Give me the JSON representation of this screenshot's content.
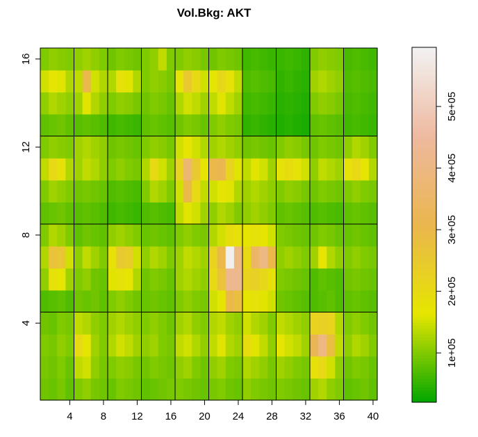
{
  "chart_data": {
    "type": "heatmap",
    "title": "Vol.Bkg:  AKT",
    "xlim": [
      0.5,
      40.5
    ],
    "ylim": [
      0.5,
      16.5
    ],
    "xticks": [
      4,
      8,
      12,
      16,
      20,
      24,
      28,
      32,
      36,
      40
    ],
    "yticks": [
      4,
      8,
      12,
      16
    ],
    "zlim": [
      20000,
      596000
    ],
    "zticks": [
      {
        "value": 100000,
        "label": "1e+05"
      },
      {
        "value": 200000,
        "label": "2e+05"
      },
      {
        "value": 300000,
        "label": "3e+05"
      },
      {
        "value": 400000,
        "label": "4e+05"
      },
      {
        "value": 500000,
        "label": "5e+05"
      }
    ],
    "colors": [
      "#00A600",
      "#E6E600",
      "#EAB64E",
      "#EEB99F",
      "#F2F2F2"
    ],
    "z": [
      [
        90000,
        85000,
        95000,
        80000,
        100000,
        110000,
        95000,
        90000,
        85000,
        100000,
        95000,
        90000,
        80000,
        85000,
        90000,
        95000,
        100000,
        95000,
        90000,
        85000,
        95000,
        100000,
        90000,
        85000,
        110000,
        100000,
        95000,
        90000,
        100000,
        95000,
        90000,
        85000,
        120000,
        130000,
        110000,
        100000,
        80000,
        85000,
        90000,
        80000
      ],
      [
        95000,
        90000,
        100000,
        85000,
        140000,
        150000,
        110000,
        95000,
        100000,
        110000,
        105000,
        95000,
        90000,
        100000,
        95000,
        90000,
        110000,
        120000,
        100000,
        90000,
        110000,
        120000,
        100000,
        95000,
        130000,
        120000,
        110000,
        95000,
        120000,
        110000,
        100000,
        95000,
        180000,
        200000,
        150000,
        110000,
        90000,
        100000,
        95000,
        85000
      ],
      [
        100000,
        95000,
        110000,
        100000,
        200000,
        170000,
        120000,
        100000,
        130000,
        150000,
        140000,
        120000,
        110000,
        120000,
        100000,
        95000,
        140000,
        150000,
        130000,
        110000,
        140000,
        160000,
        130000,
        120000,
        190000,
        160000,
        140000,
        110000,
        170000,
        150000,
        140000,
        120000,
        320000,
        400000,
        280000,
        140000,
        110000,
        130000,
        120000,
        100000
      ],
      [
        90000,
        85000,
        100000,
        95000,
        140000,
        130000,
        110000,
        100000,
        120000,
        130000,
        120000,
        110000,
        100000,
        110000,
        100000,
        90000,
        120000,
        130000,
        110000,
        100000,
        130000,
        140000,
        120000,
        110000,
        150000,
        130000,
        120000,
        100000,
        140000,
        130000,
        120000,
        110000,
        220000,
        230000,
        220000,
        130000,
        100000,
        110000,
        100000,
        90000
      ],
      [
        70000,
        75000,
        80000,
        70000,
        90000,
        85000,
        90000,
        80000,
        100000,
        110000,
        100000,
        90000,
        85000,
        90000,
        85000,
        80000,
        100000,
        110000,
        100000,
        95000,
        150000,
        170000,
        300000,
        280000,
        170000,
        180000,
        160000,
        150000,
        90000,
        85000,
        80000,
        75000,
        70000,
        75000,
        80000,
        70000,
        80000,
        85000,
        80000,
        75000
      ],
      [
        110000,
        180000,
        170000,
        120000,
        100000,
        110000,
        90000,
        85000,
        160000,
        180000,
        170000,
        130000,
        90000,
        100000,
        95000,
        85000,
        120000,
        130000,
        120000,
        110000,
        200000,
        270000,
        420000,
        420000,
        220000,
        230000,
        210000,
        180000,
        100000,
        95000,
        90000,
        85000,
        70000,
        80000,
        75000,
        70000,
        90000,
        95000,
        90000,
        85000
      ],
      [
        130000,
        270000,
        260000,
        150000,
        110000,
        140000,
        120000,
        100000,
        180000,
        250000,
        240000,
        150000,
        110000,
        130000,
        120000,
        100000,
        120000,
        140000,
        130000,
        120000,
        220000,
        300000,
        590000,
        400000,
        200000,
        350000,
        400000,
        300000,
        110000,
        120000,
        110000,
        100000,
        120000,
        170000,
        130000,
        110000,
        100000,
        110000,
        100000,
        95000
      ],
      [
        100000,
        130000,
        120000,
        100000,
        80000,
        90000,
        85000,
        80000,
        110000,
        120000,
        110000,
        100000,
        85000,
        90000,
        85000,
        80000,
        100000,
        110000,
        100000,
        95000,
        130000,
        150000,
        190000,
        180000,
        170000,
        180000,
        170000,
        150000,
        100000,
        95000,
        90000,
        85000,
        90000,
        100000,
        95000,
        85000,
        85000,
        90000,
        85000,
        80000
      ],
      [
        80000,
        85000,
        90000,
        80000,
        75000,
        80000,
        75000,
        70000,
        60000,
        65000,
        60000,
        55000,
        70000,
        75000,
        70000,
        65000,
        140000,
        160000,
        150000,
        120000,
        110000,
        130000,
        120000,
        100000,
        110000,
        120000,
        110000,
        100000,
        80000,
        85000,
        80000,
        75000,
        70000,
        75000,
        70000,
        65000,
        80000,
        85000,
        80000,
        75000
      ],
      [
        100000,
        120000,
        110000,
        100000,
        90000,
        95000,
        90000,
        85000,
        70000,
        75000,
        70000,
        65000,
        100000,
        130000,
        120000,
        100000,
        150000,
        300000,
        200000,
        140000,
        150000,
        170000,
        160000,
        130000,
        120000,
        130000,
        120000,
        110000,
        100000,
        110000,
        105000,
        95000,
        90000,
        100000,
        95000,
        90000,
        100000,
        110000,
        100000,
        95000
      ],
      [
        140000,
        200000,
        180000,
        130000,
        120000,
        140000,
        130000,
        110000,
        100000,
        110000,
        100000,
        95000,
        130000,
        200000,
        150000,
        120000,
        220000,
        370000,
        250000,
        170000,
        300000,
        310000,
        220000,
        160000,
        140000,
        160000,
        150000,
        120000,
        180000,
        190000,
        180000,
        150000,
        110000,
        140000,
        130000,
        120000,
        180000,
        200000,
        170000,
        130000
      ],
      [
        100000,
        110000,
        105000,
        100000,
        120000,
        130000,
        120000,
        110000,
        90000,
        95000,
        90000,
        85000,
        100000,
        110000,
        105000,
        95000,
        150000,
        170000,
        150000,
        130000,
        120000,
        130000,
        120000,
        110000,
        90000,
        95000,
        90000,
        85000,
        100000,
        110000,
        105000,
        95000,
        90000,
        100000,
        95000,
        90000,
        110000,
        130000,
        120000,
        100000
      ],
      [
        80000,
        85000,
        90000,
        80000,
        75000,
        80000,
        75000,
        70000,
        60000,
        65000,
        60000,
        55000,
        80000,
        85000,
        80000,
        75000,
        90000,
        100000,
        95000,
        85000,
        100000,
        110000,
        100000,
        95000,
        50000,
        55000,
        50000,
        45000,
        40000,
        45000,
        40000,
        35000,
        80000,
        85000,
        80000,
        75000,
        60000,
        65000,
        60000,
        55000
      ],
      [
        110000,
        130000,
        120000,
        110000,
        120000,
        160000,
        130000,
        110000,
        100000,
        110000,
        105000,
        95000,
        90000,
        100000,
        95000,
        85000,
        130000,
        150000,
        140000,
        120000,
        140000,
        160000,
        140000,
        120000,
        60000,
        65000,
        60000,
        55000,
        45000,
        50000,
        45000,
        40000,
        100000,
        110000,
        105000,
        95000,
        65000,
        70000,
        65000,
        60000
      ],
      [
        150000,
        170000,
        160000,
        130000,
        140000,
        300000,
        150000,
        130000,
        130000,
        180000,
        160000,
        130000,
        100000,
        110000,
        105000,
        95000,
        170000,
        250000,
        200000,
        150000,
        170000,
        210000,
        180000,
        140000,
        70000,
        75000,
        70000,
        65000,
        50000,
        55000,
        50000,
        45000,
        120000,
        130000,
        120000,
        110000,
        70000,
        75000,
        70000,
        65000
      ],
      [
        100000,
        110000,
        105000,
        100000,
        110000,
        120000,
        110000,
        100000,
        90000,
        100000,
        95000,
        90000,
        100000,
        110000,
        140000,
        100000,
        100000,
        110000,
        105000,
        95000,
        90000,
        100000,
        95000,
        90000,
        60000,
        65000,
        60000,
        55000,
        55000,
        60000,
        55000,
        50000,
        100000,
        110000,
        105000,
        100000,
        65000,
        70000,
        65000,
        60000
      ]
    ]
  }
}
